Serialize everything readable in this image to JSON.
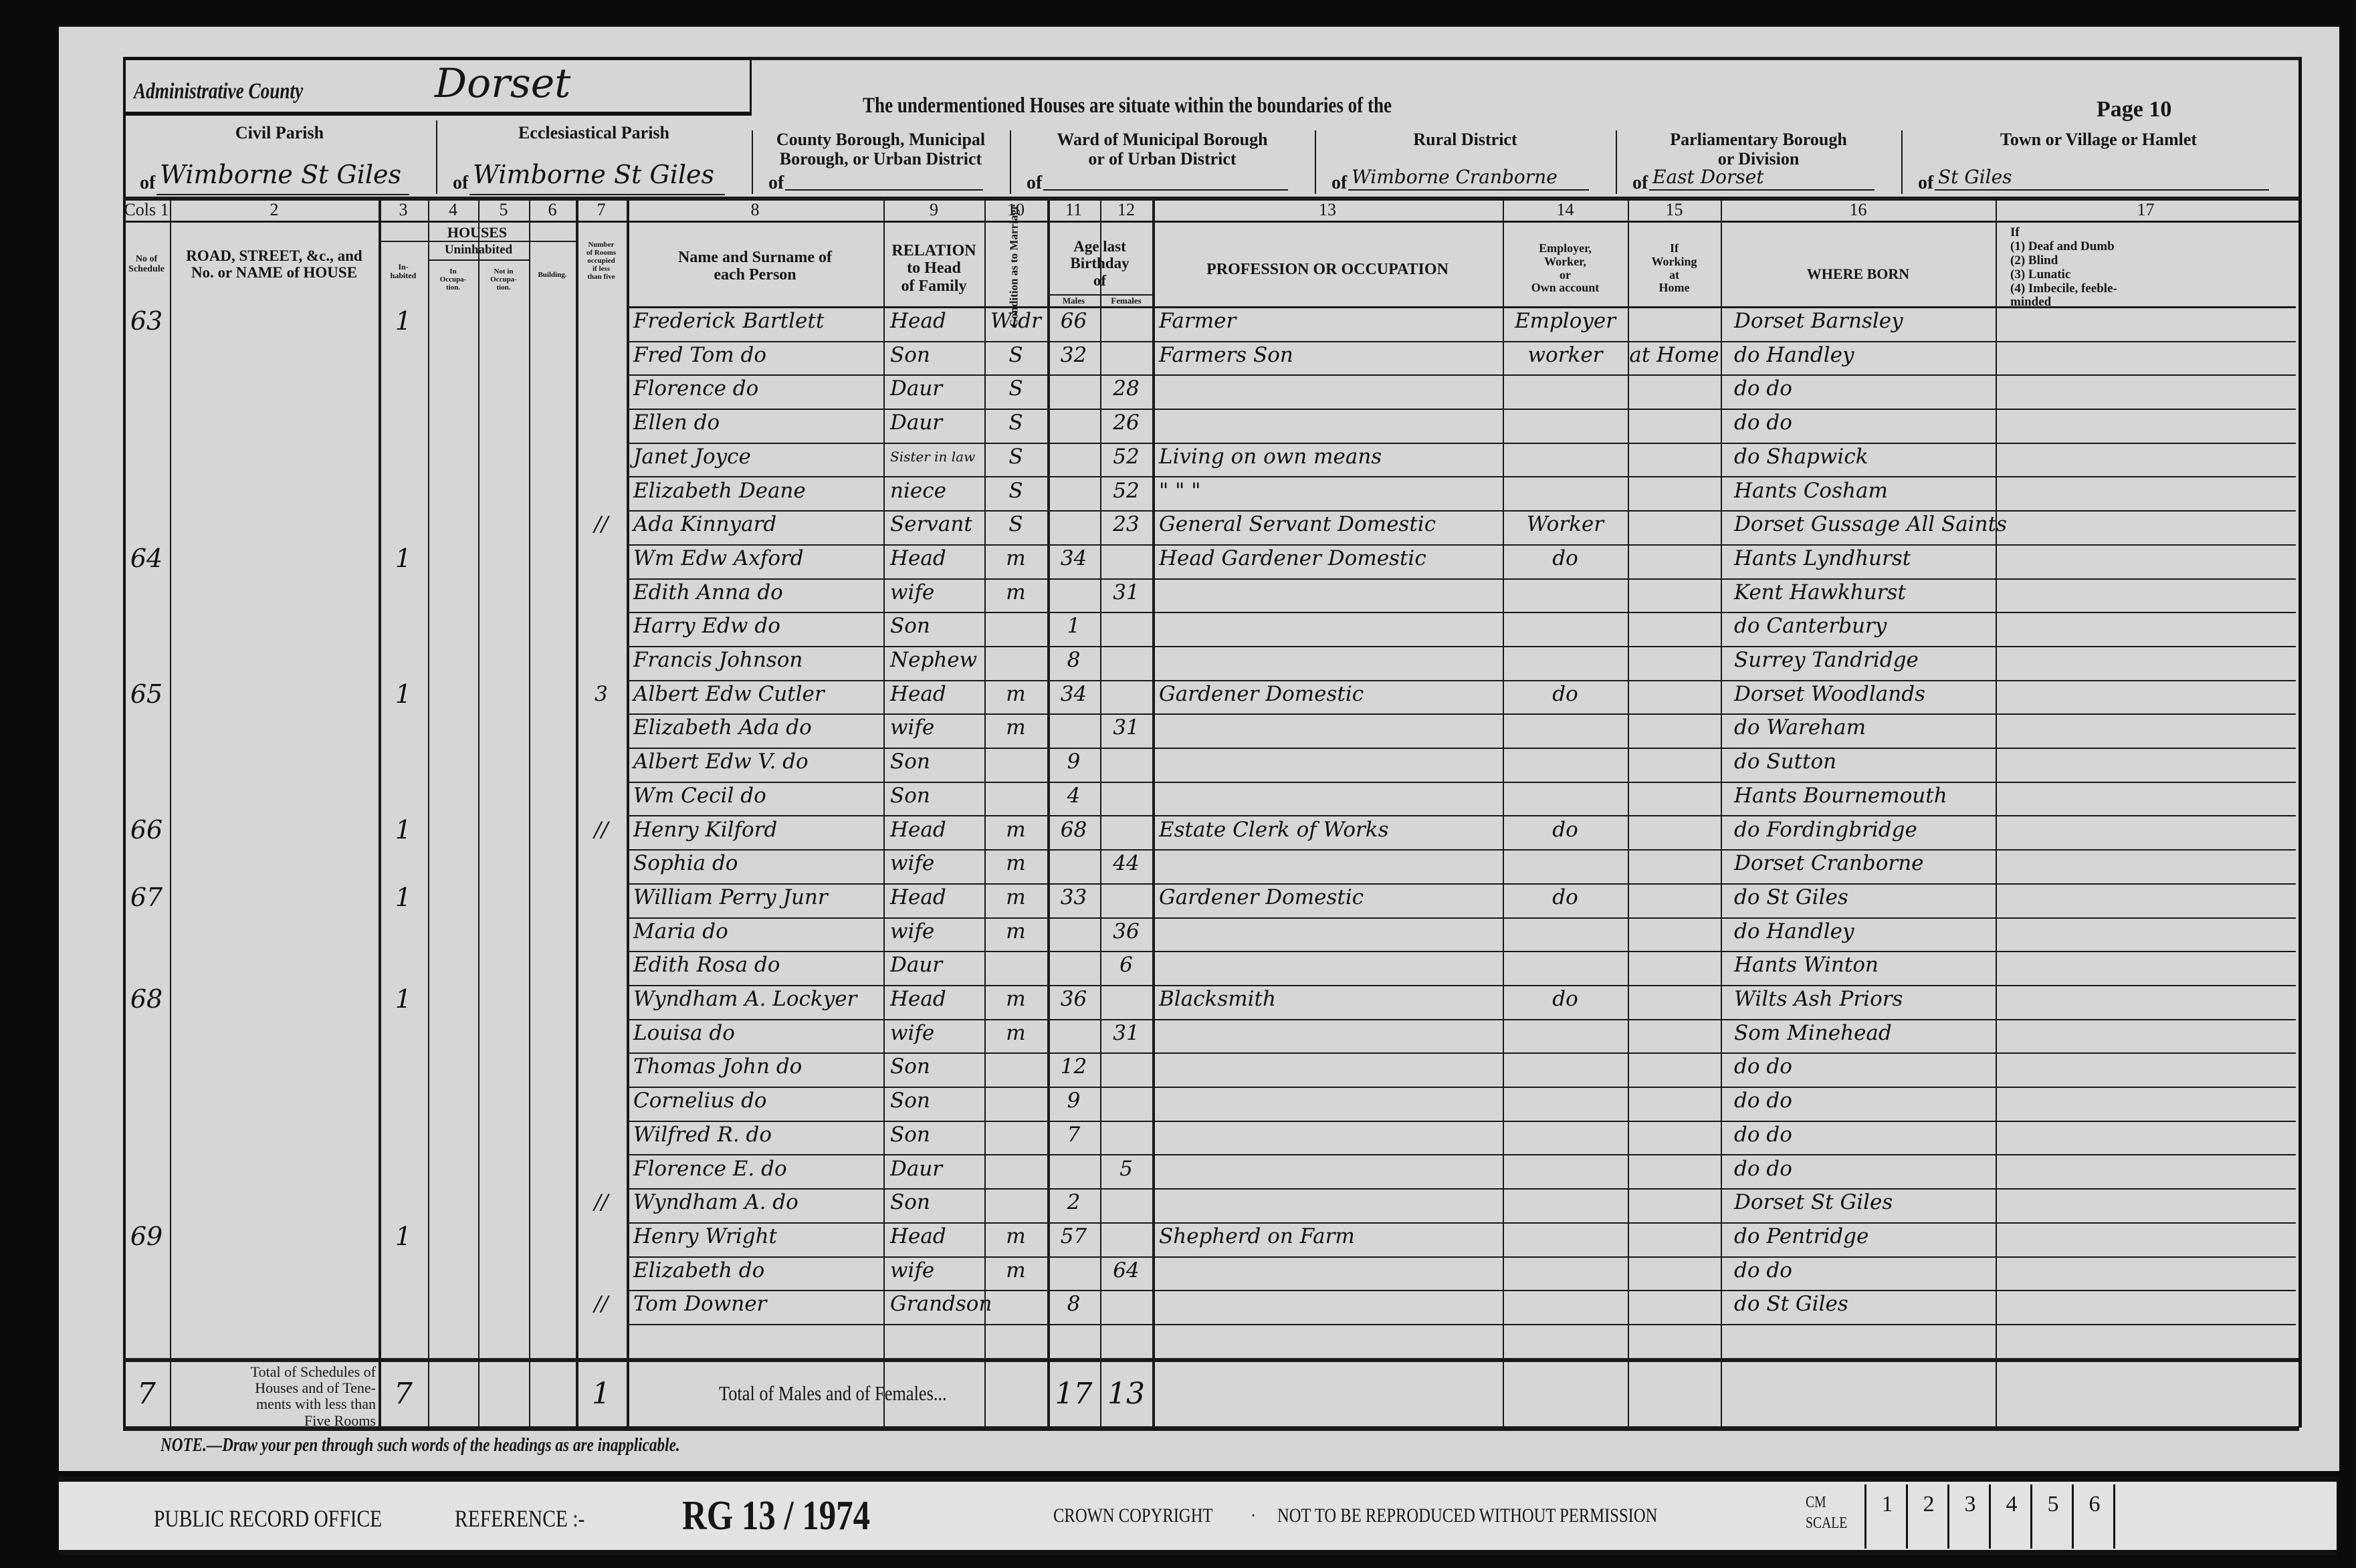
{
  "header": {
    "admin_county_label": "Administrative County",
    "admin_county_value": "Dorset",
    "boundaries_text": "The undermentioned Houses are situate within the boundaries of the",
    "page_label": "Page 10",
    "divisions": [
      {
        "label": "Civil Parish",
        "value": "Wimborne St Giles"
      },
      {
        "label": "Ecclesiastical Parish",
        "value": "Wimborne St Giles"
      },
      {
        "label": "County Borough, Municipal\nBorough, or Urban District",
        "value": ""
      },
      {
        "label": "Ward of Municipal Borough\nor of Urban District",
        "value": ""
      },
      {
        "label": "Rural District",
        "value": "Wimborne Cranborne"
      },
      {
        "label": "Parliamentary Borough\nor Division",
        "value": "East Dorset"
      },
      {
        "label": "Town or Village or Hamlet",
        "value": "St Giles"
      }
    ],
    "of_label": "of"
  },
  "columns": {
    "numbers": [
      "Cols 1",
      "2",
      "3",
      "4",
      "5",
      "6",
      "7",
      "8",
      "9",
      "10",
      "11",
      "12",
      "13",
      "14",
      "15",
      "16",
      "17"
    ],
    "schedule": "No of\nSchedule",
    "road": "ROAD, STREET, &c., and\nNo. or NAME of HOUSE",
    "houses": "HOUSES",
    "uninhabited": "Uninhabited",
    "inhabited": "In-\nhabited",
    "in_occupation": "In\nOccupa-\ntion.",
    "not_in_occupation": "Not in\nOccupa-\ntion.",
    "building": "Building.",
    "rooms": "Number\nof Rooms\noccupied\nif less\nthan five",
    "name": "Name and Surname of\neach Person",
    "relation": "RELATION\nto Head\nof Family",
    "condition": "Condition as to Marriage",
    "age": "Age last\nBirthday\nof",
    "males": "Males",
    "females": "Females",
    "occupation": "PROFESSION OR OCCUPATION",
    "employer": "Employer,\nWorker,\nor\nOwn account",
    "at_home": "If\nWorking\nat\nHome",
    "where_born": "WHERE BORN",
    "infirmity": "If\n(1) Deaf and Dumb\n(2) Blind\n(3) Lunatic\n(4) Imbecile, feeble-\nminded"
  },
  "rows": [
    {
      "sched": "63",
      "inh": "1",
      "name": "Frederick Bartlett",
      "rel": "Head",
      "cond": "Widr",
      "m": "66",
      "f": "",
      "occ": "Farmer",
      "emp": "Employer",
      "home": "",
      "born": "Dorset Barnsley"
    },
    {
      "name": "Fred Tom do",
      "rel": "Son",
      "cond": "S",
      "m": "32",
      "f": "",
      "occ": "Farmers Son",
      "emp": "worker",
      "home": "at Home",
      "born": "do Handley"
    },
    {
      "name": "Florence do",
      "rel": "Daur",
      "cond": "S",
      "m": "",
      "f": "28",
      "occ": "",
      "emp": "",
      "home": "",
      "born": "do do"
    },
    {
      "name": "Ellen do",
      "rel": "Daur",
      "cond": "S",
      "m": "",
      "f": "26",
      "occ": "",
      "emp": "",
      "home": "",
      "born": "do do"
    },
    {
      "name": "Janet Joyce",
      "rel": "Sister in law",
      "cond": "S",
      "m": "",
      "f": "52",
      "occ": "Living on own means",
      "emp": "",
      "home": "",
      "born": "do Shapwick"
    },
    {
      "name": "Elizabeth Deane",
      "rel": "niece",
      "cond": "S",
      "m": "",
      "f": "52",
      "occ": "\"    \"    \"",
      "emp": "",
      "home": "",
      "born": "Hants Cosham"
    },
    {
      "rooms": "//",
      "name": "Ada Kinnyard",
      "rel": "Servant",
      "cond": "S",
      "m": "",
      "f": "23",
      "occ": "General Servant Domestic",
      "emp": "Worker",
      "home": "",
      "born": "Dorset Gussage All Saints"
    },
    {
      "sched": "64",
      "inh": "1",
      "name": "Wm Edw Axford",
      "rel": "Head",
      "cond": "m",
      "m": "34",
      "f": "",
      "occ": "Head Gardener Domestic",
      "emp": "do",
      "home": "",
      "born": "Hants Lyndhurst"
    },
    {
      "name": "Edith Anna do",
      "rel": "wife",
      "cond": "m",
      "m": "",
      "f": "31",
      "occ": "",
      "emp": "",
      "home": "",
      "born": "Kent Hawkhurst"
    },
    {
      "name": "Harry Edw do",
      "rel": "Son",
      "cond": "",
      "m": "1",
      "f": "",
      "occ": "",
      "emp": "",
      "home": "",
      "born": "do Canterbury"
    },
    {
      "name": "Francis Johnson",
      "rel": "Nephew",
      "cond": "",
      "m": "8",
      "f": "",
      "occ": "",
      "emp": "",
      "home": "",
      "born": "Surrey Tandridge"
    },
    {
      "sched": "65",
      "inh": "1",
      "rooms": "3",
      "name": "Albert Edw Cutler",
      "rel": "Head",
      "cond": "m",
      "m": "34",
      "f": "",
      "occ": "Gardener Domestic",
      "emp": "do",
      "home": "",
      "born": "Dorset Woodlands"
    },
    {
      "name": "Elizabeth Ada do",
      "rel": "wife",
      "cond": "m",
      "m": "",
      "f": "31",
      "occ": "",
      "emp": "",
      "home": "",
      "born": "do Wareham"
    },
    {
      "name": "Albert Edw V. do",
      "rel": "Son",
      "cond": "",
      "m": "9",
      "f": "",
      "occ": "",
      "emp": "",
      "home": "",
      "born": "do Sutton"
    },
    {
      "name": "Wm Cecil do",
      "rel": "Son",
      "cond": "",
      "m": "4",
      "f": "",
      "occ": "",
      "emp": "",
      "home": "",
      "born": "Hants Bournemouth"
    },
    {
      "sched": "66",
      "inh": "1",
      "rooms": "//",
      "name": "Henry Kilford",
      "rel": "Head",
      "cond": "m",
      "m": "68",
      "f": "",
      "occ": "Estate Clerk of Works",
      "emp": "do",
      "home": "",
      "born": "do Fordingbridge"
    },
    {
      "name": "Sophia do",
      "rel": "wife",
      "cond": "m",
      "m": "",
      "f": "44",
      "occ": "",
      "emp": "",
      "home": "",
      "born": "Dorset Cranborne"
    },
    {
      "sched": "67",
      "inh": "1",
      "name": "William Perry Junr",
      "rel": "Head",
      "cond": "m",
      "m": "33",
      "f": "",
      "occ": "Gardener Domestic",
      "emp": "do",
      "home": "",
      "born": "do St Giles"
    },
    {
      "name": "Maria do",
      "rel": "wife",
      "cond": "m",
      "m": "",
      "f": "36",
      "occ": "",
      "emp": "",
      "home": "",
      "born": "do Handley"
    },
    {
      "name": "Edith Rosa do",
      "rel": "Daur",
      "cond": "",
      "m": "",
      "f": "6",
      "occ": "",
      "emp": "",
      "home": "",
      "born": "Hants Winton"
    },
    {
      "sched": "68",
      "inh": "1",
      "name": "Wyndham A. Lockyer",
      "rel": "Head",
      "cond": "m",
      "m": "36",
      "f": "",
      "occ": "Blacksmith",
      "emp": "do",
      "home": "",
      "born": "Wilts Ash Priors"
    },
    {
      "name": "Louisa do",
      "rel": "wife",
      "cond": "m",
      "m": "",
      "f": "31",
      "occ": "",
      "emp": "",
      "home": "",
      "born": "Som Minehead"
    },
    {
      "name": "Thomas John do",
      "rel": "Son",
      "cond": "",
      "m": "12",
      "f": "",
      "occ": "",
      "emp": "",
      "home": "",
      "born": "do do"
    },
    {
      "name": "Cornelius do",
      "rel": "Son",
      "cond": "",
      "m": "9",
      "f": "",
      "occ": "",
      "emp": "",
      "home": "",
      "born": "do do"
    },
    {
      "name": "Wilfred R. do",
      "rel": "Son",
      "cond": "",
      "m": "7",
      "f": "",
      "occ": "",
      "emp": "",
      "home": "",
      "born": "do do"
    },
    {
      "name": "Florence E. do",
      "rel": "Daur",
      "cond": "",
      "m": "",
      "f": "5",
      "occ": "",
      "emp": "",
      "home": "",
      "born": "do do"
    },
    {
      "rooms": "//",
      "name": "Wyndham A. do",
      "rel": "Son",
      "cond": "",
      "m": "2",
      "f": "",
      "occ": "",
      "emp": "",
      "home": "",
      "born": "Dorset St Giles"
    },
    {
      "sched": "69",
      "inh": "1",
      "name": "Henry Wright",
      "rel": "Head",
      "cond": "m",
      "m": "57",
      "f": "",
      "occ": "Shepherd on Farm",
      "emp": "",
      "home": "",
      "born": "do Pentridge"
    },
    {
      "name": "Elizabeth do",
      "rel": "wife",
      "cond": "m",
      "m": "",
      "f": "64",
      "occ": "",
      "emp": "",
      "home": "",
      "born": "do do"
    },
    {
      "rooms": "//",
      "name": "Tom Downer",
      "rel": "Grandson",
      "cond": "",
      "m": "8",
      "f": "",
      "occ": "",
      "emp": "",
      "home": "",
      "born": "do St Giles"
    },
    {
      "name": "",
      "rel": "",
      "cond": "",
      "m": "",
      "f": "",
      "occ": "",
      "emp": "",
      "home": "",
      "born": ""
    }
  ],
  "totals": {
    "schedules_label": "Total of Schedules of\nHouses and of Tene-\nments with less than\nFive Rooms",
    "schedules": "7",
    "inhabited": "7",
    "rooms": "1",
    "males_females_label": "Total of Males and of Females...",
    "males": "17",
    "females": "13"
  },
  "note": "NOTE.—Draw your pen through such words of the headings as are inapplicable.",
  "footer": {
    "office": "PUBLIC RECORD OFFICE",
    "reference_label": "REFERENCE :-",
    "reference": "RG 13 / 1974",
    "copyright": "CROWN COPYRIGHT",
    "separator": "·",
    "permission": "NOT TO BE REPRODUCED WITHOUT PERMISSION",
    "scale_label": "CM\nSCALE",
    "scale_marks": [
      "1",
      "2",
      "3",
      "4",
      "5",
      "6",
      ""
    ]
  }
}
